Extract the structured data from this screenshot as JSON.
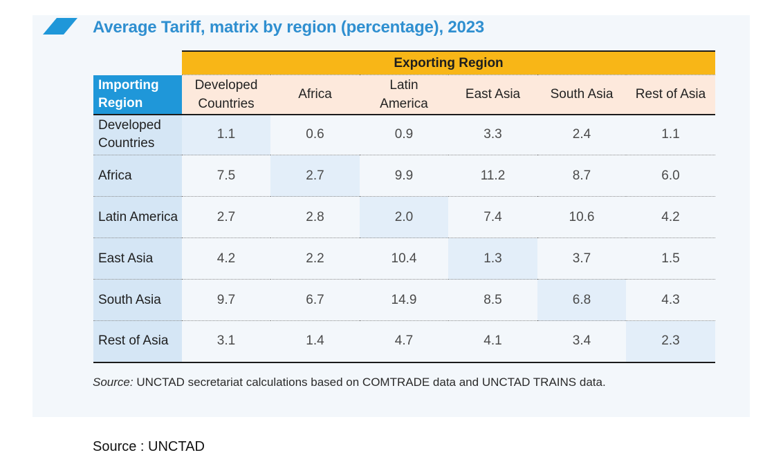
{
  "title": "Average Tariff, matrix by region (percentage), 2023",
  "exporting_label": "Exporting Region",
  "importing_label": [
    "Importing",
    "Region"
  ],
  "columns": [
    [
      "Developed",
      "Countries"
    ],
    [
      "Africa"
    ],
    [
      "Latin",
      "America"
    ],
    [
      "East Asia"
    ],
    [
      "South Asia"
    ],
    [
      "Rest of Asia"
    ]
  ],
  "rows": [
    {
      "label": [
        "Developed",
        "Countries"
      ],
      "values": [
        "1.1",
        "0.6",
        "0.9",
        "3.3",
        "2.4",
        "1.1"
      ]
    },
    {
      "label": [
        "Africa"
      ],
      "values": [
        "7.5",
        "2.7",
        "9.9",
        "11.2",
        "8.7",
        "6.0"
      ]
    },
    {
      "label": [
        "Latin America"
      ],
      "values": [
        "2.7",
        "2.8",
        "2.0",
        "7.4",
        "10.6",
        "4.2"
      ]
    },
    {
      "label": [
        "East Asia"
      ],
      "values": [
        "4.2",
        "2.2",
        "10.4",
        "1.3",
        "3.7",
        "1.5"
      ]
    },
    {
      "label": [
        "South Asia"
      ],
      "values": [
        "9.7",
        "6.7",
        "14.9",
        "8.5",
        "6.8",
        "4.3"
      ]
    },
    {
      "label": [
        "Rest of Asia"
      ],
      "values": [
        "3.1",
        "1.4",
        "4.7",
        "4.1",
        "3.4",
        "2.3"
      ]
    }
  ],
  "source_prefix": "Source:",
  "source_text": " UNCTAD secretariat calculations based on COMTRADE data and UNCTAD TRAINS data.",
  "footer_source": "Source : UNCTAD",
  "colors": {
    "title": "#2f8fd0",
    "banner": "#f8b617",
    "corner": "#1f97d9",
    "row_header": "#d5e6f5",
    "column_header": "#fde9dc",
    "diagonal": "#e3eef9"
  }
}
